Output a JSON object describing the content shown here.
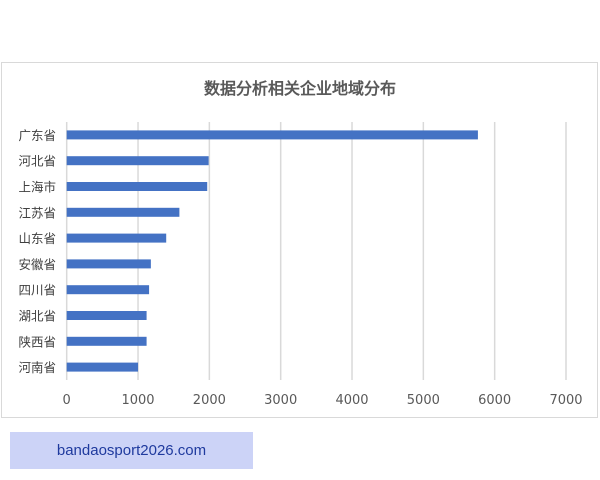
{
  "chart_data": {
    "type": "bar",
    "orientation": "horizontal",
    "title": "数据分析相关企业地域分布",
    "categories": [
      "广东省",
      "河北省",
      "上海市",
      "江苏省",
      "山东省",
      "安徽省",
      "四川省",
      "湖北省",
      "陕西省",
      "河南省"
    ],
    "values": [
      5765,
      1990,
      1970,
      1580,
      1395,
      1180,
      1155,
      1120,
      1120,
      1000
    ],
    "xlim": [
      0,
      7000
    ],
    "xticks": [
      "0",
      "1000",
      "2000",
      "3000",
      "4000",
      "5000",
      "6000",
      "7000"
    ],
    "grid": true,
    "legend": "none",
    "bar_color": "#4472c4"
  },
  "watermark": "bandaosport2026.com"
}
